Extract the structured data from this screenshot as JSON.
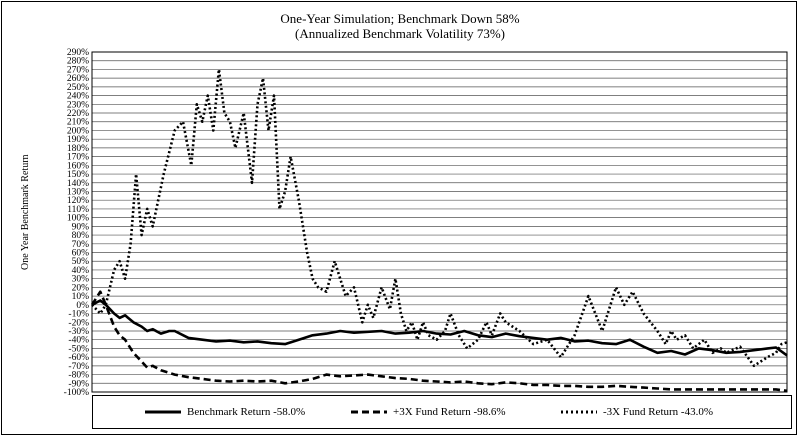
{
  "chart_data": {
    "type": "line",
    "title": "One-Year Simulation; Benchmark Down 58%",
    "subtitle": "(Annualized Benchmark Volatility 73%)",
    "xlabel": "",
    "ylabel": "One Year Benchmark Return",
    "ylim": [
      -100,
      290
    ],
    "yticks": [
      "290%",
      "280%",
      "270%",
      "260%",
      "250%",
      "240%",
      "230%",
      "220%",
      "210%",
      "200%",
      "190%",
      "180%",
      "170%",
      "160%",
      "150%",
      "140%",
      "130%",
      "120%",
      "110%",
      "100%",
      "90%",
      "80%",
      "70%",
      "60%",
      "50%",
      "40%",
      "30%",
      "20%",
      "10%",
      "0%",
      "-10%",
      "-20%",
      "-30%",
      "-40%",
      "-50%",
      "-60%",
      "-70%",
      "-80%",
      "-90%",
      "-100%"
    ],
    "grid": true,
    "legend_position": "bottom",
    "x_range": [
      0,
      252
    ],
    "series": [
      {
        "name": "Benchmark Return -58.0%",
        "style": "solid",
        "x": [
          0,
          3,
          5,
          8,
          10,
          12,
          15,
          18,
          20,
          22,
          25,
          28,
          30,
          35,
          40,
          45,
          50,
          55,
          60,
          65,
          70,
          75,
          80,
          85,
          90,
          95,
          100,
          105,
          110,
          115,
          120,
          125,
          130,
          135,
          140,
          145,
          150,
          155,
          160,
          165,
          170,
          175,
          180,
          185,
          190,
          195,
          200,
          205,
          210,
          215,
          220,
          225,
          230,
          235,
          240,
          245,
          248,
          252
        ],
        "values": [
          0,
          5,
          0,
          -10,
          -15,
          -12,
          -20,
          -25,
          -30,
          -28,
          -33,
          -30,
          -30,
          -38,
          -40,
          -42,
          -41,
          -43,
          -42,
          -44,
          -45,
          -40,
          -35,
          -33,
          -30,
          -32,
          -31,
          -30,
          -33,
          -32,
          -30,
          -33,
          -34,
          -30,
          -35,
          -37,
          -33,
          -36,
          -38,
          -40,
          -38,
          -42,
          -41,
          -44,
          -45,
          -40,
          -48,
          -55,
          -53,
          -57,
          -50,
          -52,
          -55,
          -54,
          -52,
          -50,
          -49,
          -58
        ]
      },
      {
        "name": "+3X Fund Return -98.6%",
        "style": "dashed",
        "x": [
          0,
          3,
          5,
          8,
          10,
          12,
          15,
          18,
          20,
          22,
          25,
          28,
          30,
          35,
          40,
          45,
          50,
          55,
          60,
          65,
          70,
          75,
          80,
          85,
          90,
          95,
          100,
          105,
          110,
          115,
          120,
          125,
          130,
          135,
          140,
          145,
          150,
          155,
          160,
          165,
          170,
          175,
          180,
          185,
          190,
          195,
          200,
          205,
          210,
          215,
          220,
          225,
          230,
          235,
          240,
          245,
          248,
          252
        ],
        "values": [
          0,
          15,
          0,
          -25,
          -35,
          -40,
          -55,
          -65,
          -72,
          -70,
          -75,
          -78,
          -80,
          -83,
          -85,
          -87,
          -88,
          -87,
          -88,
          -87,
          -90,
          -88,
          -85,
          -80,
          -82,
          -81,
          -80,
          -82,
          -84,
          -85,
          -87,
          -88,
          -89,
          -88,
          -90,
          -91,
          -89,
          -90,
          -92,
          -92,
          -93,
          -93,
          -94,
          -94,
          -93,
          -94,
          -95,
          -96,
          -97,
          -97,
          -97,
          -97,
          -97,
          -97,
          -97,
          -97,
          -97,
          -98.6
        ]
      },
      {
        "name": "-3X Fund Return -43.0%",
        "style": "dotted",
        "x": [
          0,
          3,
          5,
          8,
          10,
          12,
          14,
          16,
          18,
          20,
          22,
          24,
          26,
          28,
          30,
          33,
          36,
          38,
          40,
          42,
          44,
          46,
          48,
          50,
          52,
          55,
          58,
          60,
          62,
          64,
          66,
          68,
          70,
          72,
          75,
          78,
          80,
          82,
          85,
          88,
          90,
          92,
          95,
          98,
          100,
          102,
          105,
          108,
          110,
          112,
          114,
          116,
          118,
          120,
          122,
          125,
          128,
          130,
          133,
          136,
          140,
          143,
          145,
          148,
          150,
          155,
          160,
          165,
          170,
          175,
          180,
          185,
          190,
          193,
          196,
          200,
          205,
          208,
          210,
          212,
          215,
          218,
          220,
          222,
          225,
          228,
          230,
          235,
          240,
          245,
          248,
          250,
          252
        ],
        "values": [
          0,
          -10,
          0,
          40,
          50,
          30,
          70,
          150,
          80,
          110,
          90,
          120,
          150,
          175,
          200,
          210,
          160,
          230,
          210,
          240,
          200,
          270,
          220,
          210,
          180,
          220,
          140,
          230,
          260,
          200,
          240,
          110,
          130,
          170,
          120,
          60,
          30,
          20,
          15,
          50,
          30,
          10,
          20,
          -20,
          0,
          -15,
          20,
          -5,
          30,
          -10,
          -30,
          -20,
          -40,
          -20,
          -35,
          -40,
          -30,
          -10,
          -35,
          -50,
          -40,
          -20,
          -35,
          -10,
          -20,
          -30,
          -45,
          -40,
          -60,
          -35,
          10,
          -30,
          20,
          0,
          15,
          -10,
          -30,
          -45,
          -30,
          -40,
          -35,
          -50,
          -45,
          -40,
          -55,
          -50,
          -55,
          -48,
          -70,
          -60,
          -55,
          -45,
          -43
        ]
      }
    ]
  }
}
